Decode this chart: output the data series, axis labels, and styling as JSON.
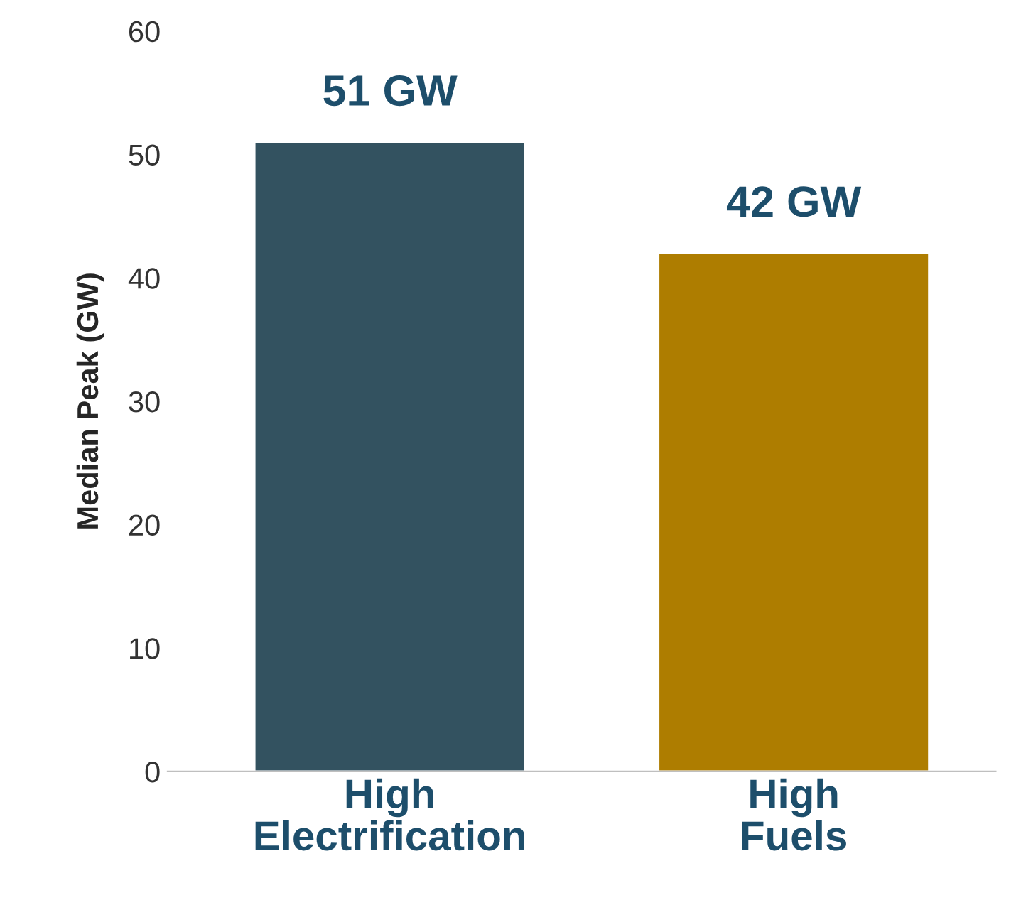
{
  "chart_data": {
    "type": "bar",
    "ylabel": "Median Peak (GW)",
    "categories": [
      "High\nElectrification",
      "High\nFuels"
    ],
    "values": [
      51,
      42
    ],
    "colors": [
      "#335260",
      "#ae7d00"
    ],
    "value_labels": [
      "51 GW",
      "42 GW"
    ],
    "ylim": [
      0,
      60
    ],
    "yticks": [
      0,
      10,
      20,
      30,
      40,
      50,
      60
    ],
    "grid": false,
    "legend": false
  }
}
